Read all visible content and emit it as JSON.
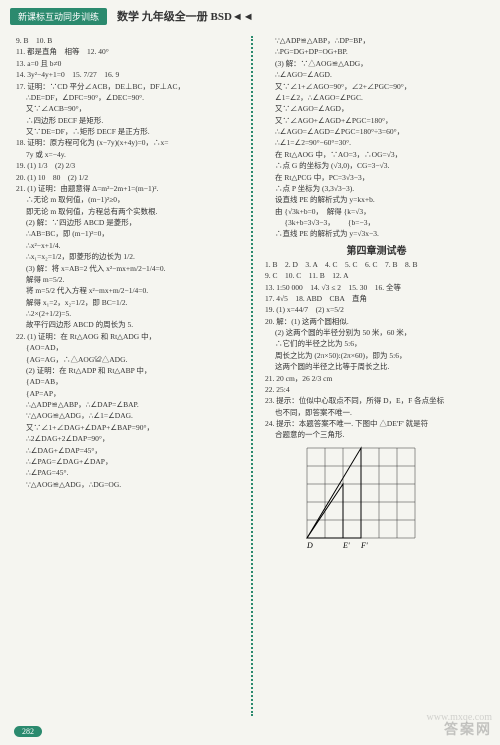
{
  "header": {
    "badge": "新课标互动同步训练",
    "title": "数学  九年级全一册 BSD◄◄"
  },
  "page_number": "282",
  "watermark": "答案网",
  "watermark2": "www.mxqe.com",
  "col1": [
    {
      "t": "9. B　10. B",
      "c": ""
    },
    {
      "t": "11. 都是直角　相等　12. 40°",
      "c": ""
    },
    {
      "t": "13. a=0 且 b≠0",
      "c": ""
    },
    {
      "t": "14. 3y²−4y+1=0　15. 7/27　16. 9",
      "c": ""
    },
    {
      "t": "17. 证明：∵CD 平分∠ACB，DE⊥BC，DF⊥AC，",
      "c": ""
    },
    {
      "t": "∴DE=DF，∠DFC=90°，∠DEC=90°.",
      "c": "indent1"
    },
    {
      "t": "又∵∠ACB=90°，",
      "c": "indent1"
    },
    {
      "t": "∴四边形 DECF 是矩形.",
      "c": "indent1"
    },
    {
      "t": "又∵DE=DF，∴矩形 DECF 是正方形.",
      "c": "indent1"
    },
    {
      "t": "18. 证明：原方程可化为 (x−7y)(x+4y)=0，∴x=",
      "c": ""
    },
    {
      "t": "7y 或 x=−4y.",
      "c": "indent1"
    },
    {
      "t": "19. (1) 1/3　(2) 2/3",
      "c": ""
    },
    {
      "t": "20. (1) 10　80　(2) 1/2",
      "c": ""
    },
    {
      "t": "21. (1) 证明：由题意得 Δ=m²−2m+1=(m−1)².",
      "c": ""
    },
    {
      "t": "∴无论 m 取何值，(m−1)²≥0，",
      "c": "indent1"
    },
    {
      "t": "即无论 m 取何值，方程总有两个实数根.",
      "c": "indent1"
    },
    {
      "t": "(2) 解：∵四边形 ABCD 是菱形，",
      "c": "indent1"
    },
    {
      "t": "∴AB=BC，即 (m−1)²=0，",
      "c": "indent1"
    },
    {
      "t": "∴x²−x+1/4.",
      "c": "indent1"
    },
    {
      "t": "∴x₁=x₂=1/2，即菱形的边长为 1/2.",
      "c": "indent1"
    },
    {
      "t": "(3) 解：将 x=AB=2 代入 x²−mx+m/2−1/4=0.",
      "c": "indent1"
    },
    {
      "t": "解得 m=5/2.",
      "c": "indent1"
    },
    {
      "t": "将 m=5/2 代入方程 x²−mx+m/2−1/4=0.",
      "c": "indent1"
    },
    {
      "t": "解得 x₁=2，x₂=1/2，即 BC=1/2.",
      "c": "indent1"
    },
    {
      "t": "∴2×(2+1/2)=5.",
      "c": "indent1"
    },
    {
      "t": "故平行四边形 ABCD 的周长为 5.",
      "c": "indent1"
    },
    {
      "t": "22. (1) 证明：在 Rt△AOG 和 Rt△ADG 中，",
      "c": ""
    },
    {
      "t": "{AO=AD，",
      "c": "indent1"
    },
    {
      "t": "{AG=AG，∴△AOG≌△ADG.",
      "c": "indent1"
    },
    {
      "t": "(2) 证明：在 Rt△ADP 和 Rt△ABP 中，",
      "c": "indent1"
    },
    {
      "t": "{AD=AB，",
      "c": "indent1"
    },
    {
      "t": "{AP=AP，",
      "c": "indent1"
    },
    {
      "t": "∴△ADP≌△ABP，∴∠DAP=∠BAP.",
      "c": "indent1"
    },
    {
      "t": "∵△AOG≌△ADG，∴∠1=∠DAG.",
      "c": "indent1"
    },
    {
      "t": "又∵∠1+∠DAG+∠DAP+∠BAP=90°，",
      "c": "indent1"
    },
    {
      "t": "∴2∠DAG+2∠DAP=90°，",
      "c": "indent1"
    },
    {
      "t": "∴∠DAG+∠DAP=45°，",
      "c": "indent1"
    },
    {
      "t": "∴∠PAG=∠DAG+∠DAP，",
      "c": "indent1"
    },
    {
      "t": "∴∠PAG=45°.",
      "c": "indent1"
    },
    {
      "t": "∵△AOG≌△ADG，∴DG=OG.",
      "c": "indent1"
    }
  ],
  "col2": [
    {
      "t": "∵△ADP≌△ABP，∴DP=BP，",
      "c": "indent1"
    },
    {
      "t": "∴PG=DG+DP=OG+BP.",
      "c": "indent1"
    },
    {
      "t": "(3) 解：∵△AOG≌△ADG，",
      "c": "indent1"
    },
    {
      "t": "∴∠AGO=∠AGD.",
      "c": "indent1"
    },
    {
      "t": "又∵∠1+∠AGO=90°，∠2+∠PGC=90°，",
      "c": "indent1"
    },
    {
      "t": "∠1=∠2，∴∠AGO=∠PGC.",
      "c": "indent1"
    },
    {
      "t": "又∵∠AGO=∠AGD，",
      "c": "indent1"
    },
    {
      "t": "又∵∠AGO+∠AGD+∠PGC=180°，",
      "c": "indent1"
    },
    {
      "t": "∴∠AGO=∠AGD=∠PGC=180°÷3=60°，",
      "c": "indent1"
    },
    {
      "t": "∴∠1=∠2=90°−60°=30°.",
      "c": "indent1"
    },
    {
      "t": "在 Rt△AOG 中，∵AO=3，∴OG=√3，",
      "c": "indent1"
    },
    {
      "t": "∴点 G 的坐标为 (√3,0)，CG=3−√3.",
      "c": "indent1"
    },
    {
      "t": "在 Rt△PCG 中，PC=3√3−3，",
      "c": "indent1"
    },
    {
      "t": "∴点 P 坐标为 (3,3√3−3).",
      "c": "indent1"
    },
    {
      "t": "设直线 PE 的解析式为 y=kx+b.",
      "c": "indent1"
    },
    {
      "t": "由 {√3k+b=0，　解得 {k=√3，",
      "c": "indent1"
    },
    {
      "t": "　 {3k+b=3√3−3，　　 {b=−3，",
      "c": "indent1"
    },
    {
      "t": "∴直线 PE 的解析式为 y=√3x−3.",
      "c": "indent1"
    },
    {
      "t": "第四章测试卷",
      "c": "section-title"
    },
    {
      "t": "1. B　2. D　3. A　4. C　5. C　6. C　7. B　8. B",
      "c": ""
    },
    {
      "t": "9. C　10. C　11. B　12. A",
      "c": ""
    },
    {
      "t": "13. 1:50 000　14. √3 ≤ 2　15. 30　16. 全等",
      "c": ""
    },
    {
      "t": "17. 4√5　18. ABD　CBA　直角",
      "c": ""
    },
    {
      "t": "19. (1) x=44/7　(2) x=5/2",
      "c": ""
    },
    {
      "t": "20. 解：(1) 这两个圆相似.",
      "c": ""
    },
    {
      "t": "(2) 这两个圆的半径分别为 50 米，60 米，",
      "c": "indent1"
    },
    {
      "t": "∴它们的半径之比为 5:6，",
      "c": "indent1"
    },
    {
      "t": "周长之比为 (2π×50):(2π×60)，即为 5:6，",
      "c": "indent1"
    },
    {
      "t": "这两个圆的半径之比等于周长之比.",
      "c": "indent1"
    },
    {
      "t": "21. 20 cm，26 2/3 cm",
      "c": ""
    },
    {
      "t": "22. 25:4",
      "c": ""
    },
    {
      "t": "23. 提示：位似中心取点不同，所得 D，E，F 各点坐标",
      "c": ""
    },
    {
      "t": "也不同，即答案不唯一.",
      "c": "indent1"
    },
    {
      "t": "24. 提示：本题答案不唯一. 下图中 △DE'F' 就是符",
      "c": ""
    },
    {
      "t": "合题意的一个三角形.",
      "c": "indent1"
    }
  ],
  "figure": {
    "grid_color": "#333",
    "cell": 18,
    "cols": 6,
    "rows": 5,
    "labels": {
      "D": [
        0,
        5
      ],
      "E'": [
        2,
        5
      ],
      "F'": [
        3,
        5
      ]
    },
    "triangle1": [
      [
        0,
        5
      ],
      [
        3,
        5
      ],
      [
        3,
        0
      ]
    ],
    "triangle2": [
      [
        0,
        5
      ],
      [
        2,
        5
      ],
      [
        2,
        2
      ]
    ]
  }
}
